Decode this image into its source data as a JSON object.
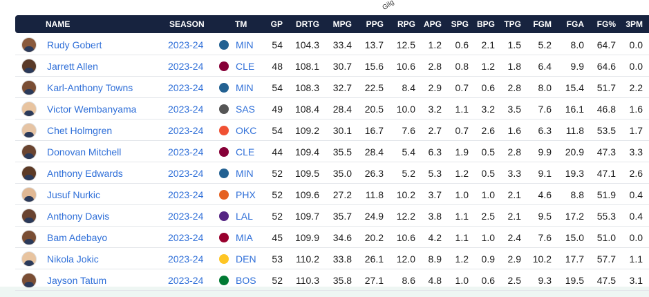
{
  "overflow_label": "Gilg",
  "table": {
    "headers": [
      "NAME",
      "SEASON",
      "TM",
      "GP",
      "DRTG",
      "MPG",
      "PPG",
      "RPG",
      "APG",
      "SPG",
      "BPG",
      "TPG",
      "FGM",
      "FGA",
      "FG%",
      "3PM"
    ],
    "rows": [
      [
        "Rudy Gobert",
        "2023-24",
        "MIN",
        "54",
        "104.3",
        "33.4",
        "13.7",
        "12.5",
        "1.2",
        "0.6",
        "2.1",
        "1.5",
        "5.2",
        "8.0",
        "64.7",
        "0.0"
      ],
      [
        "Jarrett Allen",
        "2023-24",
        "CLE",
        "48",
        "108.1",
        "30.7",
        "15.6",
        "10.6",
        "2.8",
        "0.8",
        "1.2",
        "1.8",
        "6.4",
        "9.9",
        "64.6",
        "0.0"
      ],
      [
        "Karl-Anthony Towns",
        "2023-24",
        "MIN",
        "54",
        "108.3",
        "32.7",
        "22.5",
        "8.4",
        "2.9",
        "0.7",
        "0.6",
        "2.8",
        "8.0",
        "15.4",
        "51.7",
        "2.2"
      ],
      [
        "Victor Wembanyama",
        "2023-24",
        "SAS",
        "49",
        "108.4",
        "28.4",
        "20.5",
        "10.0",
        "3.2",
        "1.1",
        "3.2",
        "3.5",
        "7.6",
        "16.1",
        "46.8",
        "1.6"
      ],
      [
        "Chet Holmgren",
        "2023-24",
        "OKC",
        "54",
        "109.2",
        "30.1",
        "16.7",
        "7.6",
        "2.7",
        "0.7",
        "2.6",
        "1.6",
        "6.3",
        "11.8",
        "53.5",
        "1.7"
      ],
      [
        "Donovan Mitchell",
        "2023-24",
        "CLE",
        "44",
        "109.4",
        "35.5",
        "28.4",
        "5.4",
        "6.3",
        "1.9",
        "0.5",
        "2.8",
        "9.9",
        "20.9",
        "47.3",
        "3.3"
      ],
      [
        "Anthony Edwards",
        "2023-24",
        "MIN",
        "52",
        "109.5",
        "35.0",
        "26.3",
        "5.2",
        "5.3",
        "1.2",
        "0.5",
        "3.3",
        "9.1",
        "19.3",
        "47.1",
        "2.6"
      ],
      [
        "Jusuf Nurkic",
        "2023-24",
        "PHX",
        "52",
        "109.6",
        "27.2",
        "11.8",
        "10.2",
        "3.7",
        "1.0",
        "1.0",
        "2.1",
        "4.6",
        "8.8",
        "51.9",
        "0.4"
      ],
      [
        "Anthony Davis",
        "2023-24",
        "LAL",
        "52",
        "109.7",
        "35.7",
        "24.9",
        "12.2",
        "3.8",
        "1.1",
        "2.5",
        "2.1",
        "9.5",
        "17.2",
        "55.3",
        "0.4"
      ],
      [
        "Bam Adebayo",
        "2023-24",
        "MIA",
        "45",
        "109.9",
        "34.6",
        "20.2",
        "10.6",
        "4.2",
        "1.1",
        "1.0",
        "2.4",
        "7.6",
        "15.0",
        "51.0",
        "0.0"
      ],
      [
        "Nikola Jokic",
        "2023-24",
        "DEN",
        "53",
        "110.2",
        "33.8",
        "26.1",
        "12.0",
        "8.9",
        "1.2",
        "0.9",
        "2.9",
        "10.2",
        "17.7",
        "57.7",
        "1.1"
      ],
      [
        "Jayson Tatum",
        "2023-24",
        "BOS",
        "52",
        "110.3",
        "35.8",
        "27.1",
        "8.6",
        "4.8",
        "1.0",
        "0.6",
        "2.5",
        "9.3",
        "19.5",
        "47.5",
        "3.1"
      ]
    ]
  }
}
